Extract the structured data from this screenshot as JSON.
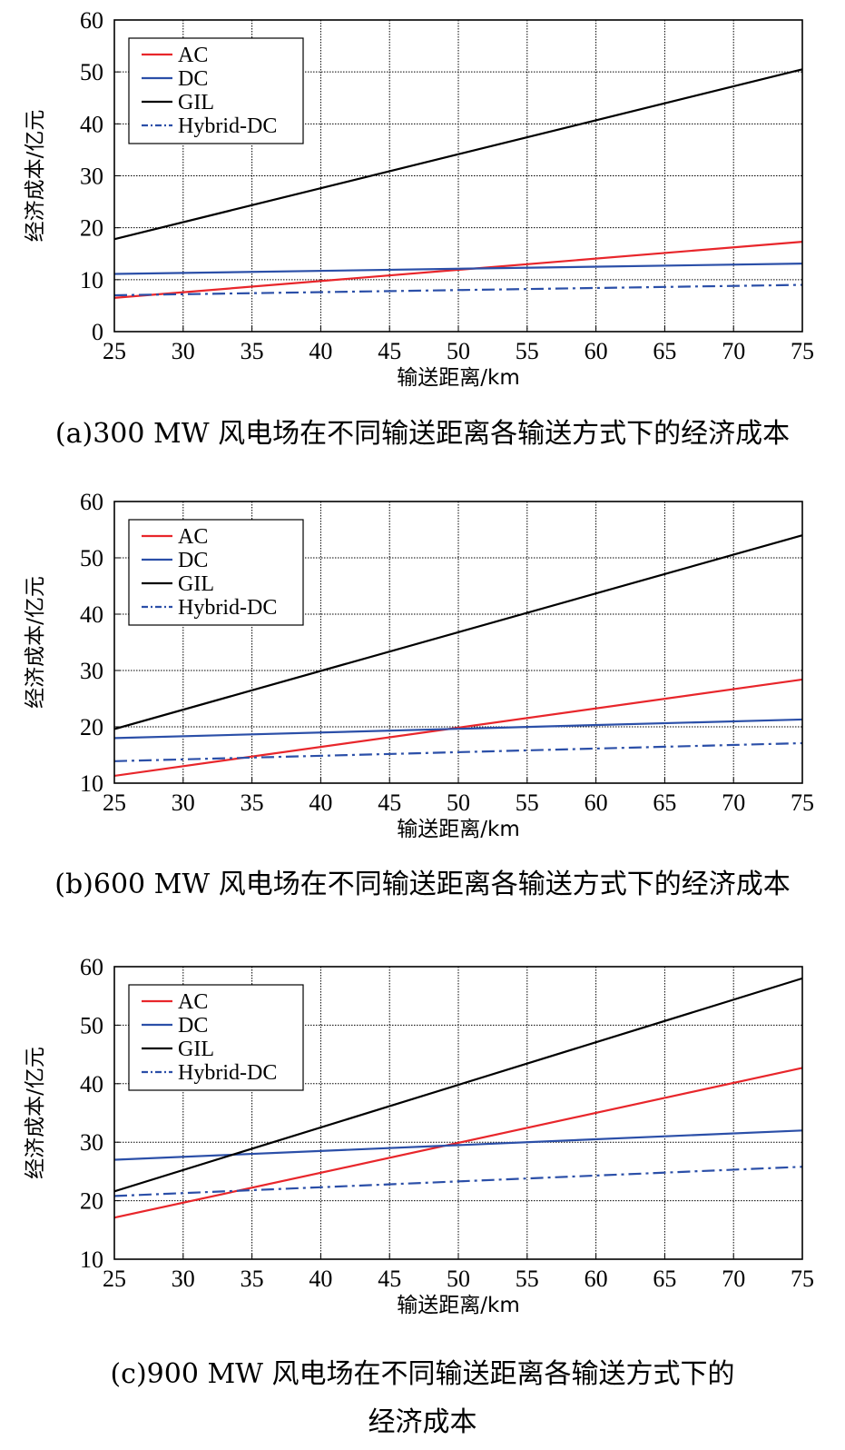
{
  "chart_data": [
    {
      "type": "line",
      "xlabel": "输送距离/km",
      "ylabel": "经济成本/亿元",
      "xlim": [
        25,
        75
      ],
      "ylim": [
        0,
        60
      ],
      "xticks": [
        25,
        30,
        35,
        40,
        45,
        50,
        55,
        60,
        65,
        70,
        75
      ],
      "yticks": [
        0,
        10,
        20,
        30,
        40,
        50,
        60
      ],
      "grid": true,
      "legend_position": "top-left",
      "caption": "(a)300 MW 风电场在不同输送距离各输送方式下的经济成本",
      "series": [
        {
          "name": "AC",
          "color": "#e8262b",
          "dash": "solid",
          "x": [
            25,
            75
          ],
          "y": [
            6.5,
            17.3
          ]
        },
        {
          "name": "DC",
          "color": "#2b4fa8",
          "dash": "solid",
          "x": [
            25,
            75
          ],
          "y": [
            11.1,
            13.1
          ]
        },
        {
          "name": "GIL",
          "color": "#000000",
          "dash": "solid",
          "x": [
            25,
            75
          ],
          "y": [
            17.8,
            50.5
          ]
        },
        {
          "name": "Hybrid-DC",
          "color": "#2b4fa8",
          "dash": "dashdot",
          "x": [
            25,
            75
          ],
          "y": [
            7.0,
            9.0
          ]
        }
      ]
    },
    {
      "type": "line",
      "xlabel": "输送距离/km",
      "ylabel": "经济成本/亿元",
      "xlim": [
        25,
        75
      ],
      "ylim": [
        10,
        60
      ],
      "xticks": [
        25,
        30,
        35,
        40,
        45,
        50,
        55,
        60,
        65,
        70,
        75
      ],
      "yticks": [
        10,
        20,
        30,
        40,
        50,
        60
      ],
      "grid": true,
      "legend_position": "top-left",
      "caption": "(b)600 MW 风电场在不同输送距离各输送方式下的经济成本",
      "series": [
        {
          "name": "AC",
          "color": "#e8262b",
          "dash": "solid",
          "x": [
            25,
            75
          ],
          "y": [
            11.3,
            28.4
          ]
        },
        {
          "name": "DC",
          "color": "#2b4fa8",
          "dash": "solid",
          "x": [
            25,
            75
          ],
          "y": [
            18.0,
            21.3
          ]
        },
        {
          "name": "GIL",
          "color": "#000000",
          "dash": "solid",
          "x": [
            25,
            75
          ],
          "y": [
            19.6,
            54.0
          ]
        },
        {
          "name": "Hybrid-DC",
          "color": "#2b4fa8",
          "dash": "dashdot",
          "x": [
            25,
            75
          ],
          "y": [
            13.9,
            17.1
          ]
        }
      ]
    },
    {
      "type": "line",
      "xlabel": "输送距离/km",
      "ylabel": "经济成本/亿元",
      "xlim": [
        25,
        75
      ],
      "ylim": [
        10,
        60
      ],
      "xticks": [
        25,
        30,
        35,
        40,
        45,
        50,
        55,
        60,
        65,
        70,
        75
      ],
      "yticks": [
        10,
        20,
        30,
        40,
        50,
        60
      ],
      "grid": true,
      "legend_position": "top-left",
      "caption": "(c)900 MW 风电场在不同输送距离各输送方式下的",
      "caption_line2": "经济成本",
      "series": [
        {
          "name": "AC",
          "color": "#e8262b",
          "dash": "solid",
          "x": [
            25,
            75
          ],
          "y": [
            17.1,
            42.7
          ]
        },
        {
          "name": "DC",
          "color": "#2b4fa8",
          "dash": "solid",
          "x": [
            25,
            75
          ],
          "y": [
            27.0,
            32.0
          ]
        },
        {
          "name": "GIL",
          "color": "#000000",
          "dash": "solid",
          "x": [
            25,
            75
          ],
          "y": [
            21.6,
            58.0
          ]
        },
        {
          "name": "Hybrid-DC",
          "color": "#2b4fa8",
          "dash": "dashdot",
          "x": [
            25,
            75
          ],
          "y": [
            20.8,
            25.8
          ]
        }
      ]
    }
  ]
}
